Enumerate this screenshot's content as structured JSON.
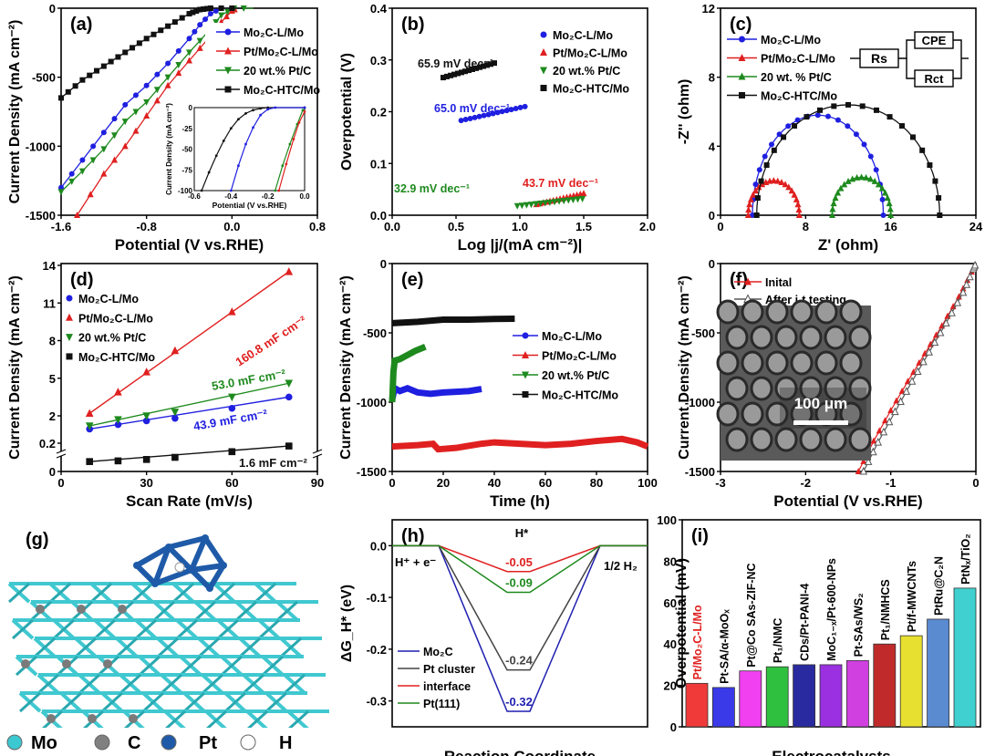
{
  "colors": {
    "blue": "#1f1fe0",
    "red": "#e02020",
    "green": "#1e8a1e",
    "black": "#111111",
    "gray": "#555555"
  },
  "structure": {
    "label": "(g)",
    "legend": [
      "Mo",
      "C",
      "Pt",
      "H"
    ],
    "colors": [
      "#3cc8d0",
      "#808080",
      "#1e5aa8",
      "#ffffff"
    ]
  },
  "chart_data": [
    {
      "id": "a",
      "type": "line",
      "label": "(a)",
      "xlabel": "Potential (V vs.RHE)",
      "ylabel": "Current Density (mA cm⁻²)",
      "xlim": [
        -1.6,
        0.8
      ],
      "ylim": [
        -1500,
        0
      ],
      "xticks": [
        "-1.6",
        "-0.8",
        "0.0",
        "0.8"
      ],
      "xtickvals": [
        -1.6,
        -0.8,
        0,
        0.8
      ],
      "yticks": [
        "-1500",
        "-1000",
        "-500",
        "0"
      ],
      "ytickvals": [
        -1500,
        -1000,
        -500,
        0
      ],
      "legend_position": "top-right",
      "series": [
        {
          "name": "Mo₂C-L/Mo",
          "color": "#1f1fe0",
          "marker": "circle",
          "x": [
            -1.6,
            -1.4,
            -1.2,
            -1.0,
            -0.8,
            -0.6,
            -0.4,
            -0.3,
            -0.2,
            -0.1,
            0.1
          ],
          "y": [
            -1300,
            -1100,
            -900,
            -700,
            -560,
            -400,
            -220,
            -120,
            -40,
            0,
            0
          ]
        },
        {
          "name": "Pt/Mo₂C-L/Mo",
          "color": "#e02020",
          "marker": "tri-up",
          "x": [
            -1.45,
            -1.2,
            -1.0,
            -0.8,
            -0.6,
            -0.4,
            -0.2,
            -0.1,
            0.0,
            0.05
          ],
          "y": [
            -1500,
            -1200,
            -1000,
            -780,
            -560,
            -380,
            -200,
            -100,
            -20,
            0
          ]
        },
        {
          "name": "20 wt.% Pt/C",
          "color": "#1e8a1e",
          "marker": "tri-down",
          "x": [
            -1.6,
            -1.4,
            -1.2,
            -1.0,
            -0.8,
            -0.6,
            -0.4,
            -0.2,
            -0.1,
            0.02,
            0.2
          ],
          "y": [
            -1330,
            -1180,
            -1020,
            -820,
            -680,
            -500,
            -320,
            -150,
            -50,
            0,
            0
          ]
        },
        {
          "name": "Mo₂C-HTC/Mo",
          "color": "#111111",
          "marker": "square",
          "x": [
            -1.6,
            -1.4,
            -1.2,
            -1.0,
            -0.8,
            -0.6,
            -0.4,
            -0.3,
            -0.2,
            0.1
          ],
          "y": [
            -650,
            -520,
            -420,
            -320,
            -220,
            -130,
            -40,
            -10,
            0,
            0
          ]
        }
      ],
      "inset": {
        "xlabel": "Potential (V vs.RHE)",
        "ylabel": "Current Density (mA cm⁻²)",
        "xlim": [
          -0.6,
          0
        ],
        "ylim": [
          -100,
          0
        ],
        "xticks": [
          "-0.6",
          "-0.4",
          "-0.2",
          "0.0"
        ],
        "xtickvals": [
          -0.6,
          -0.4,
          -0.2,
          0
        ],
        "yticks": [
          "-100",
          "-75",
          "-50",
          "-25",
          "0"
        ],
        "ytickvals": [
          -100,
          -75,
          -50,
          -25,
          0
        ],
        "series": [
          {
            "color": "#111111",
            "x": [
              -0.56,
              -0.52,
              -0.48,
              -0.44,
              -0.4,
              -0.36,
              -0.32,
              -0.28,
              -0.24,
              -0.2,
              0
            ],
            "y": [
              -100,
              -78,
              -58,
              -40,
              -25,
              -14,
              -7,
              -3,
              -1,
              0,
              0
            ]
          },
          {
            "color": "#1f1fe0",
            "x": [
              -0.4,
              -0.36,
              -0.32,
              -0.28,
              -0.24,
              -0.2,
              -0.16,
              0
            ],
            "y": [
              -100,
              -70,
              -44,
              -24,
              -9,
              -2,
              0,
              0
            ]
          },
          {
            "color": "#1e8a1e",
            "x": [
              -0.16,
              -0.12,
              -0.08,
              -0.04,
              -0.01
            ],
            "y": [
              -100,
              -70,
              -44,
              -20,
              -3
            ]
          },
          {
            "color": "#e02020",
            "x": [
              -0.14,
              -0.1,
              -0.06,
              -0.03,
              0
            ],
            "y": [
              -100,
              -68,
              -38,
              -18,
              -5
            ]
          }
        ]
      }
    },
    {
      "id": "b",
      "type": "line",
      "label": "(b)",
      "xlabel": "Log |j/(mA cm⁻²)|",
      "ylabel": "Overpotential (V)",
      "xlim": [
        0,
        2.0
      ],
      "ylim": [
        0,
        0.4
      ],
      "xticks": [
        "0.0",
        "0.5",
        "1.0",
        "1.5",
        "2.0"
      ],
      "xtickvals": [
        0,
        0.5,
        1,
        1.5,
        2
      ],
      "yticks": [
        "0.0",
        "0.1",
        "0.2",
        "0.3",
        "0.4"
      ],
      "ytickvals": [
        0,
        0.1,
        0.2,
        0.3,
        0.4
      ],
      "legend_position": "top-right",
      "series": [
        {
          "name": "Mo₂C-L/Mo",
          "color": "#1f1fe0",
          "marker": "circle",
          "x": [
            0.54,
            1.04
          ],
          "y": [
            0.183,
            0.21
          ],
          "slope_label": "65.0 mV dec⁻¹"
        },
        {
          "name": "Pt/Mo₂C-L/Mo",
          "color": "#e02020",
          "marker": "tri-up",
          "x": [
            1.13,
            1.5
          ],
          "y": [
            0.021,
            0.042
          ],
          "slope_label": "43.7 mV dec⁻¹"
        },
        {
          "name": "20 wt.% Pt/C",
          "color": "#1e8a1e",
          "marker": "tri-down",
          "x": [
            0.98,
            1.49
          ],
          "y": [
            0.018,
            0.032
          ],
          "slope_label": "32.9 mV dec⁻¹"
        },
        {
          "name": "Mo₂C-HTC/Mo",
          "color": "#111111",
          "marker": "square",
          "x": [
            0.4,
            0.8
          ],
          "y": [
            0.266,
            0.294
          ],
          "slope_label": "65.9 mV dec⁻¹"
        }
      ]
    },
    {
      "id": "c",
      "type": "scatter",
      "label": "(c)",
      "xlabel": "Z' (ohm)",
      "ylabel": "-Z'' (ohm)",
      "xlim": [
        0,
        24
      ],
      "ylim": [
        0,
        12
      ],
      "xticks": [
        "0",
        "8",
        "16",
        "24"
      ],
      "xtickvals": [
        0,
        8,
        16,
        24
      ],
      "yticks": [
        "0",
        "4",
        "8",
        "12"
      ],
      "ytickvals": [
        0,
        4,
        8,
        12
      ],
      "legend_position": "top-left",
      "series": [
        {
          "name": "Mo₂C-L/Mo",
          "color": "#1f1fe0",
          "marker": "circle",
          "semicircle": {
            "z_start": 3.0,
            "z_end": 15.3,
            "peak": 5.8
          }
        },
        {
          "name": "Pt/Mo₂C-L/Mo",
          "color": "#e02020",
          "marker": "tri-up",
          "semicircle": {
            "z_start": 2.6,
            "z_end": 7.4,
            "peak": 2.0
          }
        },
        {
          "name": "20 wt. % Pt/C",
          "color": "#1e8a1e",
          "marker": "tri-up",
          "semicircle": {
            "z_start": 10.5,
            "z_end": 16.0,
            "peak": 2.2
          }
        },
        {
          "name": "Mo₂C-HTC/Mo",
          "color": "#111111",
          "marker": "square",
          "semicircle": {
            "z_start": 3.4,
            "z_end": 20.6,
            "peak": 6.4
          }
        }
      ],
      "circuit": [
        "Rs",
        "CPE",
        "Rct"
      ]
    },
    {
      "id": "d",
      "type": "scatter",
      "label": "(d)",
      "xlabel": "Scan Rate (mV/s)",
      "ylabel": "Current Density (mA cm⁻²)",
      "xlim": [
        0,
        90
      ],
      "ylim": [
        0,
        14
      ],
      "axis_break": [
        0.2,
        2
      ],
      "xticks": [
        "0",
        "30",
        "60",
        "90"
      ],
      "xtickvals": [
        0,
        30,
        60,
        90
      ],
      "yticks": [
        "0",
        "0.2",
        "2",
        "5",
        "8",
        "11",
        "14"
      ],
      "ytickvals": [
        0,
        0.2,
        2,
        5,
        8,
        11,
        14
      ],
      "legend_position": "top-left",
      "x": [
        10,
        20,
        30,
        40,
        60,
        80
      ],
      "series": [
        {
          "name": "Mo₂C-L/Mo",
          "color": "#1f1fe0",
          "marker": "circle",
          "y": [
            0.95,
            1.3,
            1.6,
            1.8,
            2.6,
            3.5
          ],
          "fit_label": "43.9 mF cm⁻²"
        },
        {
          "name": "Pt/Mo₂C-L/Mo",
          "color": "#e02020",
          "marker": "tri-up",
          "y": [
            2.2,
            3.9,
            5.5,
            7.2,
            10.3,
            13.5
          ],
          "fit_label": "160.8 mF cm⁻²"
        },
        {
          "name": "20 wt.% Pt/C",
          "color": "#1e8a1e",
          "marker": "tri-down",
          "y": [
            1.2,
            1.7,
            2.0,
            2.3,
            3.5,
            4.6
          ],
          "fit_label": "53.0 mF cm⁻²"
        },
        {
          "name": "Mo₂C-HTC/Mo",
          "color": "#111111",
          "marker": "square",
          "y": [
            0.07,
            0.075,
            0.085,
            0.1,
            0.14,
            0.18
          ],
          "fit_label": "1.6 mF cm⁻²"
        }
      ]
    },
    {
      "id": "e",
      "type": "line",
      "label": "(e)",
      "xlabel": "Time (h)",
      "ylabel": "Current Density (mA cm⁻²)",
      "xlim": [
        0,
        100
      ],
      "ylim": [
        -1500,
        0
      ],
      "xticks": [
        "0",
        "20",
        "40",
        "60",
        "80",
        "100"
      ],
      "xtickvals": [
        0,
        20,
        40,
        60,
        80,
        100
      ],
      "yticks": [
        "-1500",
        "-1000",
        "-500",
        "0"
      ],
      "ytickvals": [
        -1500,
        -1000,
        -500,
        0
      ],
      "legend_position": "right",
      "series": [
        {
          "name": "Mo₂C-L/Mo",
          "color": "#1f1fe0",
          "marker": "circle",
          "x": [
            0,
            1,
            3,
            6,
            10,
            15,
            20,
            25,
            30,
            35
          ],
          "y": [
            -980,
            -900,
            -920,
            -900,
            -930,
            -940,
            -930,
            -925,
            -920,
            -905
          ]
        },
        {
          "name": "Pt/Mo₂C-L/Mo",
          "color": "#e02020",
          "marker": "tri-up",
          "x": [
            0,
            10,
            16,
            18,
            25,
            35,
            40,
            50,
            60,
            70,
            80,
            90,
            96,
            100
          ],
          "y": [
            -1320,
            -1310,
            -1300,
            -1340,
            -1330,
            -1300,
            -1290,
            -1300,
            -1310,
            -1300,
            -1280,
            -1265,
            -1290,
            -1320
          ]
        },
        {
          "name": "20 wt.% Pt/C",
          "color": "#1e8a1e",
          "marker": "tri-down",
          "x": [
            0,
            0.5,
            1,
            3,
            6,
            9,
            13
          ],
          "y": [
            -1000,
            -780,
            -700,
            -690,
            -660,
            -630,
            -600
          ]
        },
        {
          "name": "Mo₂C-HTC/Mo",
          "color": "#111111",
          "marker": "square",
          "x": [
            0,
            10,
            20,
            30,
            40,
            48
          ],
          "y": [
            -430,
            -420,
            -405,
            -405,
            -400,
            -398
          ]
        }
      ]
    },
    {
      "id": "f",
      "type": "line",
      "label": "(f)",
      "xlabel": "Potential (V vs.RHE)",
      "ylabel": "Current Density (mA cm⁻²)",
      "xlim": [
        -3,
        0
      ],
      "ylim": [
        -1500,
        0
      ],
      "xticks": [
        "-3",
        "-2",
        "-1",
        "0"
      ],
      "xtickvals": [
        -3,
        -2,
        -1,
        0
      ],
      "yticks": [
        "-1500",
        "-1000",
        "-500",
        "0"
      ],
      "ytickvals": [
        -1500,
        -1000,
        -500,
        0
      ],
      "legend_position": "top-left",
      "series": [
        {
          "name": "Inital",
          "color": "#e02020",
          "marker": "tri-up",
          "x": [
            -1.38,
            -1.2,
            -1.0,
            -0.8,
            -0.6,
            -0.4,
            -0.2,
            -0.05,
            0
          ],
          "y": [
            -1500,
            -1280,
            -1060,
            -850,
            -650,
            -450,
            -240,
            -60,
            0
          ]
        },
        {
          "name": "After i-t testing",
          "color": "#555555",
          "marker": "tri-open",
          "x": [
            -1.32,
            -1.15,
            -0.95,
            -0.75,
            -0.55,
            -0.35,
            -0.15,
            -0.03,
            0
          ],
          "y": [
            -1500,
            -1290,
            -1070,
            -850,
            -640,
            -430,
            -210,
            -40,
            0
          ]
        }
      ],
      "inset_image": {
        "scale_bar": "100 μm"
      }
    },
    {
      "id": "h",
      "type": "line",
      "label": "(h)",
      "xlabel": "Reaction Coordinate",
      "ylabel": "ΔG_H* (eV)",
      "ylim": [
        -0.35,
        0.05
      ],
      "yticks": [
        "0.0",
        "-0.1",
        "-0.2",
        "-0.3"
      ],
      "ytickvals": [
        0,
        -0.1,
        -0.2,
        -0.3
      ],
      "states": [
        "H⁺ + e⁻",
        "H*",
        "1/2 H₂"
      ],
      "legend_position": "bottom-left",
      "series": [
        {
          "name": "Mo₂C",
          "color": "#1f1fb0",
          "values": [
            0,
            -0.32,
            0
          ],
          "value_label": "-0.32"
        },
        {
          "name": "Pt cluster",
          "color": "#444444",
          "values": [
            0,
            -0.24,
            0
          ],
          "value_label": "-0.24"
        },
        {
          "name": "interface",
          "color": "#e02020",
          "values": [
            0,
            -0.05,
            0
          ],
          "value_label": "-0.05"
        },
        {
          "name": "Pt(111)",
          "color": "#1e8a1e",
          "values": [
            0,
            -0.09,
            0
          ],
          "value_label": "-0.09"
        }
      ]
    },
    {
      "id": "i",
      "type": "bar",
      "label": "(i)",
      "xlabel": "Electrocatalysts",
      "ylabel": "Overpotential (mV)",
      "ylim": [
        0,
        100
      ],
      "yticks": [
        "0",
        "20",
        "40",
        "60",
        "80",
        "100"
      ],
      "ytickvals": [
        0,
        20,
        40,
        60,
        80,
        100
      ],
      "categories": [
        "Pt/Mo₂C-L/Mo",
        "Pt-SA/α-MoOₓ",
        "Pt@Co SAs-ZIF-NC",
        "Pt₁/NMC",
        "CDs/Pt-PANI-4",
        "MoC₁₋ₓ/Pt-600-NPs",
        "Pt-SAs/WS₂",
        "Pt₁/NMHCS",
        "Pt/f-MWCNTs",
        "PtRu@C₂N",
        "PtNₓ/TiO₂"
      ],
      "values": [
        21,
        19,
        27,
        29,
        30,
        30,
        32,
        40,
        44,
        52,
        67
      ],
      "colors": [
        "#f03a3a",
        "#3a3ae8",
        "#f040f0",
        "#30c040",
        "#2a2aa0",
        "#9a30e0",
        "#d040e0",
        "#c02a2a",
        "#e8e030",
        "#5a8ad0",
        "#40d0d0"
      ],
      "highlight_color": "#e02020"
    }
  ]
}
